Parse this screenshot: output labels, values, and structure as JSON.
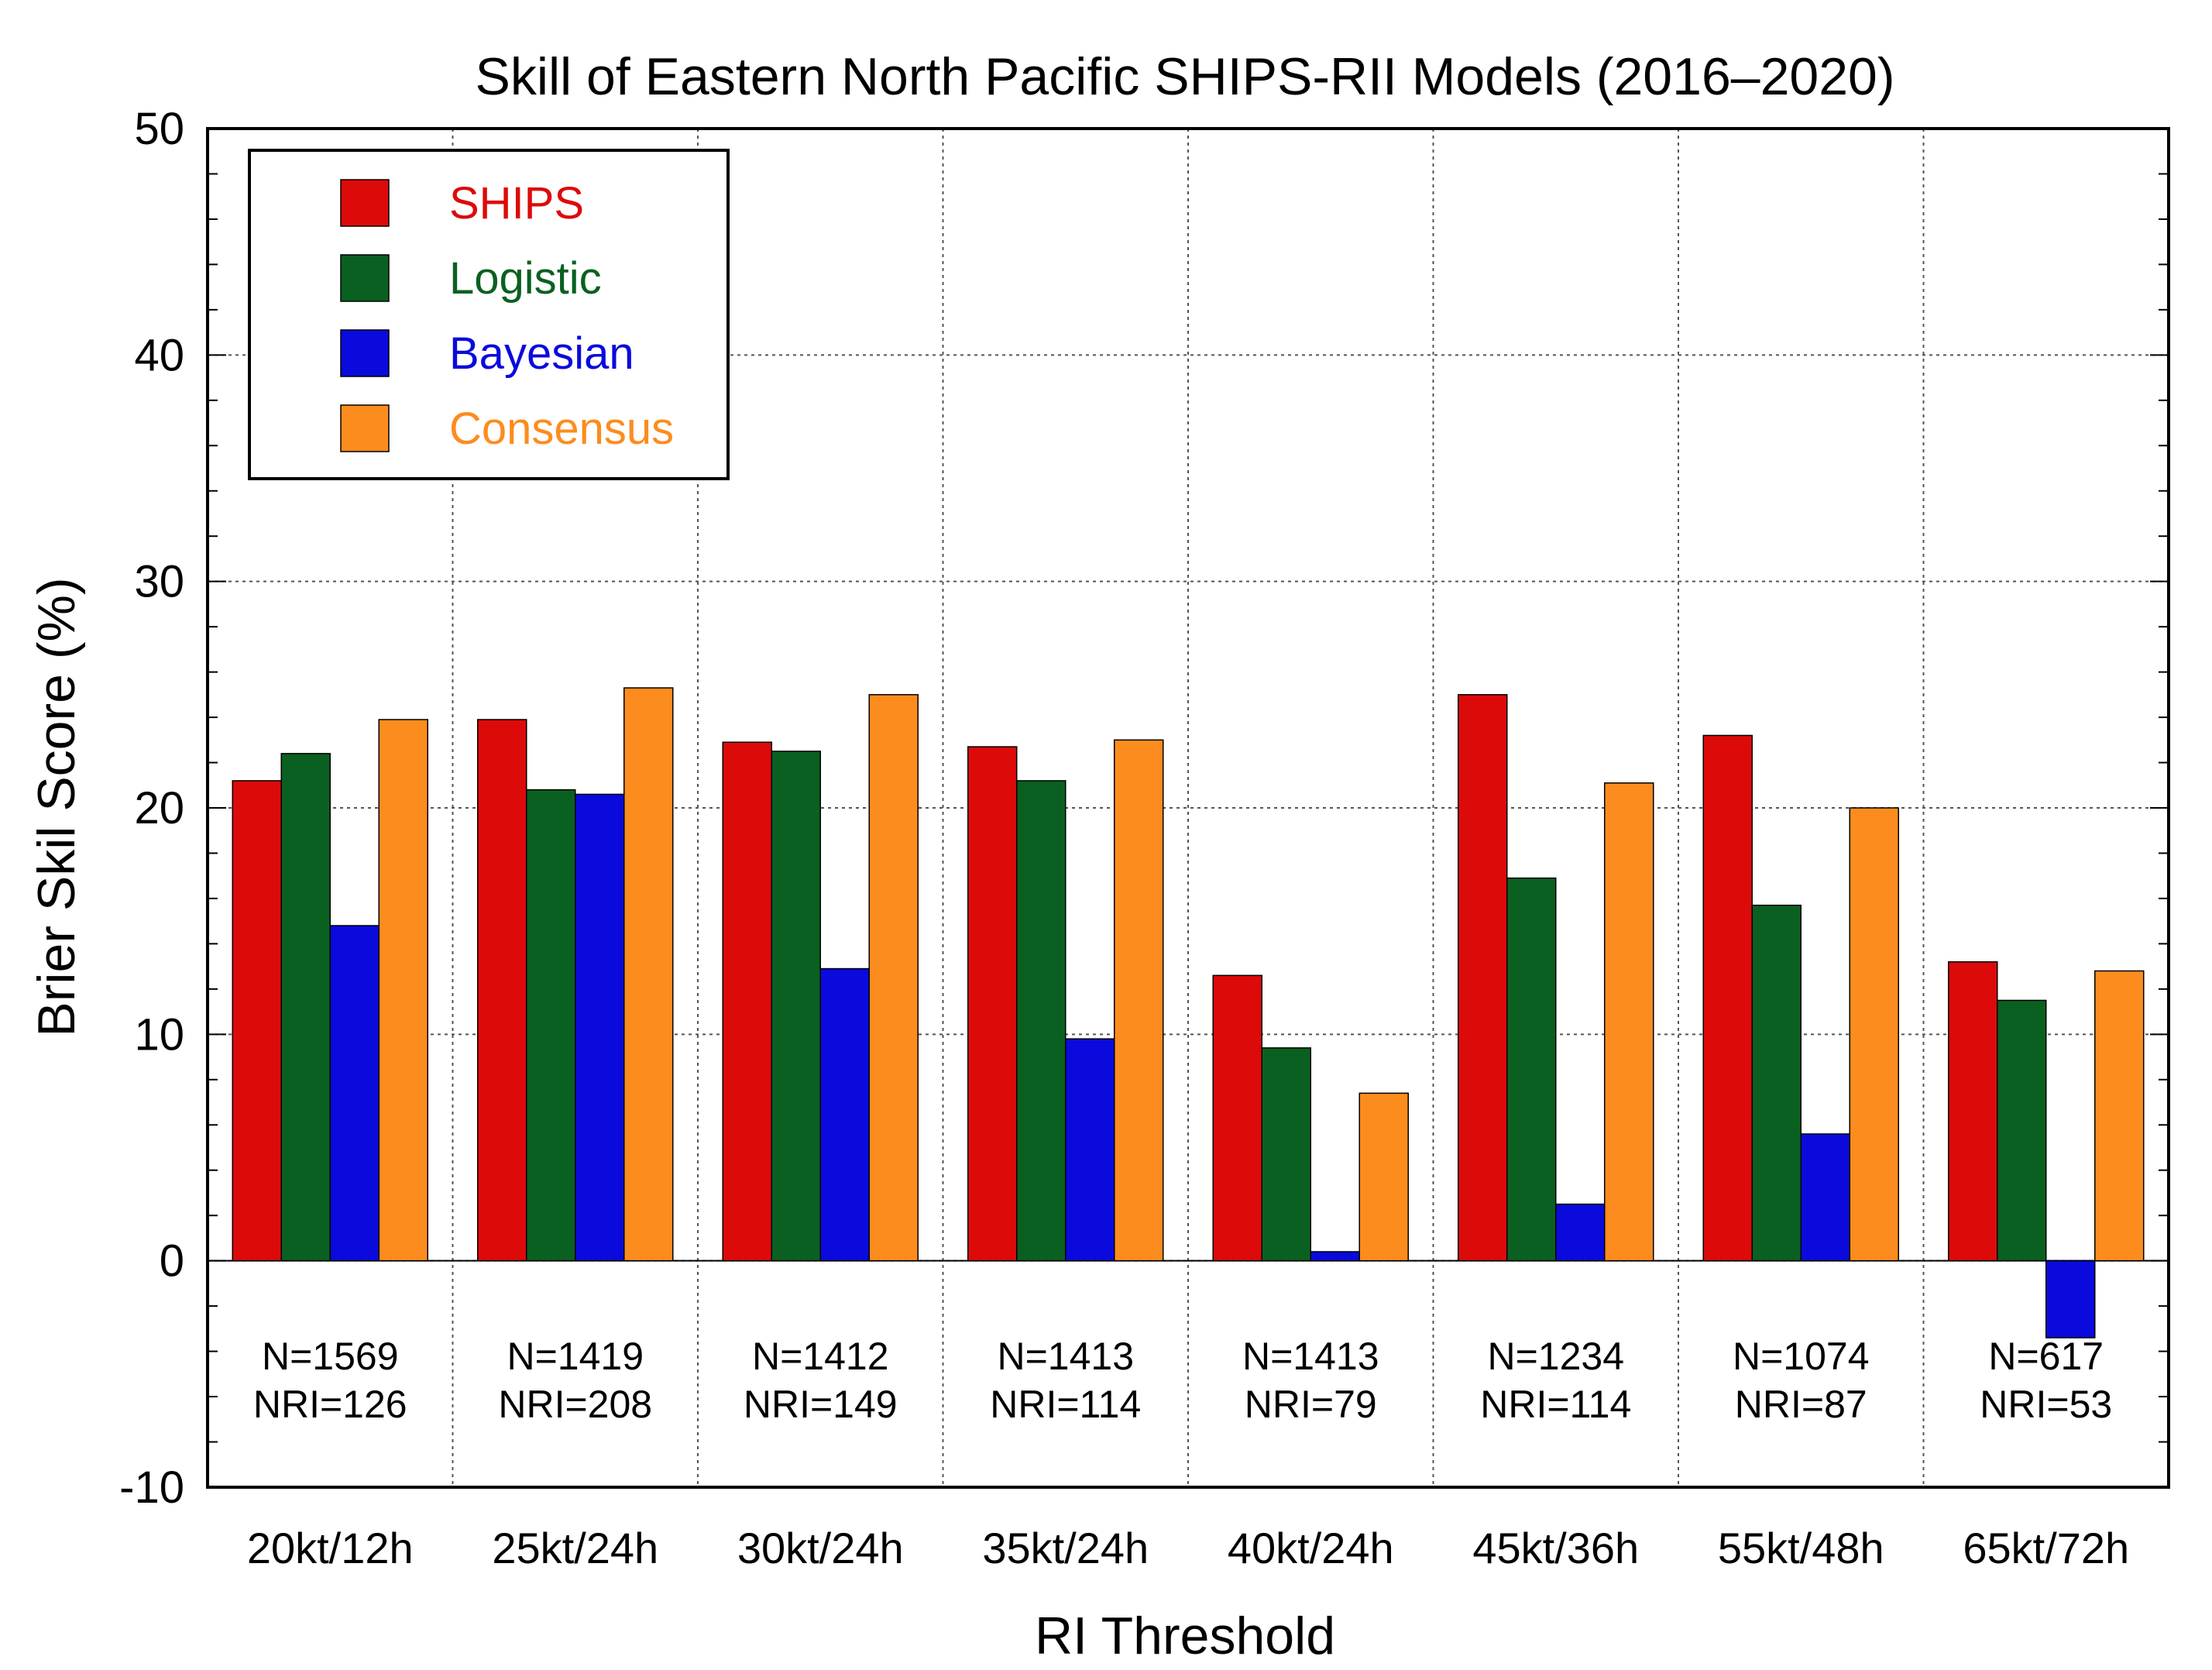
{
  "chart_data": {
    "type": "bar",
    "title": "Skill of Eastern North Pacific SHIPS-RII Models (2016–2020)",
    "xlabel": "RI Threshold",
    "ylabel": "Brier Skil Score (%)",
    "ylim": [
      -10,
      50
    ],
    "yticks": [
      -10,
      0,
      10,
      20,
      30,
      40,
      50
    ],
    "grid": true,
    "legend_position": "top-left",
    "categories": [
      "20kt/12h",
      "25kt/24h",
      "30kt/24h",
      "35kt/24h",
      "40kt/24h",
      "45kt/36h",
      "55kt/48h",
      "65kt/72h"
    ],
    "series": [
      {
        "name": "SHIPS",
        "color": "#dd0a0a",
        "values": [
          21.2,
          23.9,
          22.9,
          22.7,
          12.6,
          25.0,
          23.2,
          13.2
        ]
      },
      {
        "name": "Logistic",
        "color": "#0a6020",
        "values": [
          22.4,
          20.8,
          22.5,
          21.2,
          9.4,
          16.9,
          15.7,
          11.5
        ]
      },
      {
        "name": "Bayesian",
        "color": "#0a0adc",
        "values": [
          14.8,
          20.6,
          12.9,
          9.8,
          0.4,
          2.5,
          5.6,
          -3.4
        ]
      },
      {
        "name": "Consensus",
        "color": "#fc8c1e",
        "values": [
          23.9,
          25.3,
          25.0,
          23.0,
          7.4,
          21.1,
          20.0,
          12.8
        ]
      }
    ],
    "annotations": [
      {
        "n": "N=1569",
        "nri": "NRI=126"
      },
      {
        "n": "N=1419",
        "nri": "NRI=208"
      },
      {
        "n": "N=1412",
        "nri": "NRI=149"
      },
      {
        "n": "N=1413",
        "nri": "NRI=114"
      },
      {
        "n": "N=1413",
        "nri": "NRI=79"
      },
      {
        "n": "N=1234",
        "nri": "NRI=114"
      },
      {
        "n": "N=1074",
        "nri": "NRI=87"
      },
      {
        "n": "N=617",
        "nri": "NRI=53"
      }
    ]
  }
}
